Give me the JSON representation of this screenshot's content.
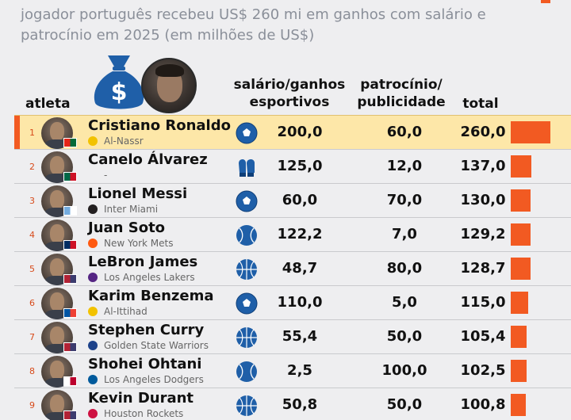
{
  "subtitle": "jogador português recebeu US$ 260 mi em ganhos com salário e patrocínio em 2025 (em milhões de US$)",
  "headers": {
    "athlete": "atleta",
    "salary_line1": "salário/ganhos",
    "salary_line2": "esportivos",
    "sponsor_line1": "patrocínio/",
    "sponsor_line2": "publicidade",
    "total": "total"
  },
  "icons": {
    "header_money": "money-bag-icon",
    "header_photo": "cristiano-ronaldo-photo"
  },
  "colors": {
    "accent": "#f25a22",
    "highlight": "#fde7a8",
    "sport_icon": "#1f5fa8",
    "subtitle": "#8a8f99"
  },
  "chart_data": {
    "type": "table",
    "columns": [
      "atleta",
      "salário/ganhos esportivos",
      "patrocínio/publicidade",
      "total"
    ],
    "bar_max": 260,
    "rows": [
      {
        "rank": "1",
        "name": "Cristiano Ronaldo",
        "club": "Al-Nassr",
        "sport": "futebol",
        "salary": "200,0",
        "sponsor": "60,0",
        "total": "260,0",
        "total_value": 260.0,
        "flag": [
          "#e42518",
          "#046a38"
        ],
        "club_color": "#f2c200",
        "highlight": true
      },
      {
        "rank": "2",
        "name": "Canelo Álvarez",
        "club": "-",
        "sport": "boxe",
        "salary": "125,0",
        "sponsor": "12,0",
        "total": "137,0",
        "total_value": 137.0,
        "flag": [
          "#006847",
          "#ce1126"
        ],
        "club_color": "",
        "highlight": false
      },
      {
        "rank": "3",
        "name": "Lionel Messi",
        "club": "Inter Miami",
        "sport": "futebol",
        "salary": "60,0",
        "sponsor": "70,0",
        "total": "130,0",
        "total_value": 130.0,
        "flag": [
          "#74acdf",
          "#ffffff"
        ],
        "club_color": "#231f20",
        "highlight": false
      },
      {
        "rank": "4",
        "name": "Juan Soto",
        "club": "New York Mets",
        "sport": "beisebol",
        "salary": "122,2",
        "sponsor": "7,0",
        "total": "129,2",
        "total_value": 129.2,
        "flag": [
          "#002d62",
          "#ce1126"
        ],
        "club_color": "#ff5910",
        "highlight": false
      },
      {
        "rank": "5",
        "name": "LeBron James",
        "club": "Los Angeles Lakers",
        "sport": "basquete",
        "salary": "48,7",
        "sponsor": "80,0",
        "total": "128,7",
        "total_value": 128.7,
        "flag": [
          "#b22234",
          "#3c3b6e"
        ],
        "club_color": "#552583",
        "highlight": false
      },
      {
        "rank": "6",
        "name": "Karim Benzema",
        "club": "Al-Ittihad",
        "sport": "futebol",
        "salary": "110,0",
        "sponsor": "5,0",
        "total": "115,0",
        "total_value": 115.0,
        "flag": [
          "#0055a4",
          "#ef4135"
        ],
        "club_color": "#f2c200",
        "highlight": false
      },
      {
        "rank": "7",
        "name": "Stephen Curry",
        "club": "Golden State Warriors",
        "sport": "basquete",
        "salary": "55,4",
        "sponsor": "50,0",
        "total": "105,4",
        "total_value": 105.4,
        "flag": [
          "#b22234",
          "#3c3b6e"
        ],
        "club_color": "#1d428a",
        "highlight": false
      },
      {
        "rank": "8",
        "name": "Shohei Ohtani",
        "club": "Los Angeles Dodgers",
        "sport": "beisebol",
        "salary": "2,5",
        "sponsor": "100,0",
        "total": "102,5",
        "total_value": 102.5,
        "flag": [
          "#ffffff",
          "#bc002d"
        ],
        "club_color": "#005a9c",
        "highlight": false
      },
      {
        "rank": "9",
        "name": "Kevin Durant",
        "club": "Houston Rockets",
        "sport": "basquete",
        "salary": "50,8",
        "sponsor": "50,0",
        "total": "100,8",
        "total_value": 100.8,
        "flag": [
          "#b22234",
          "#3c3b6e"
        ],
        "club_color": "#ce1141",
        "highlight": false
      }
    ]
  }
}
